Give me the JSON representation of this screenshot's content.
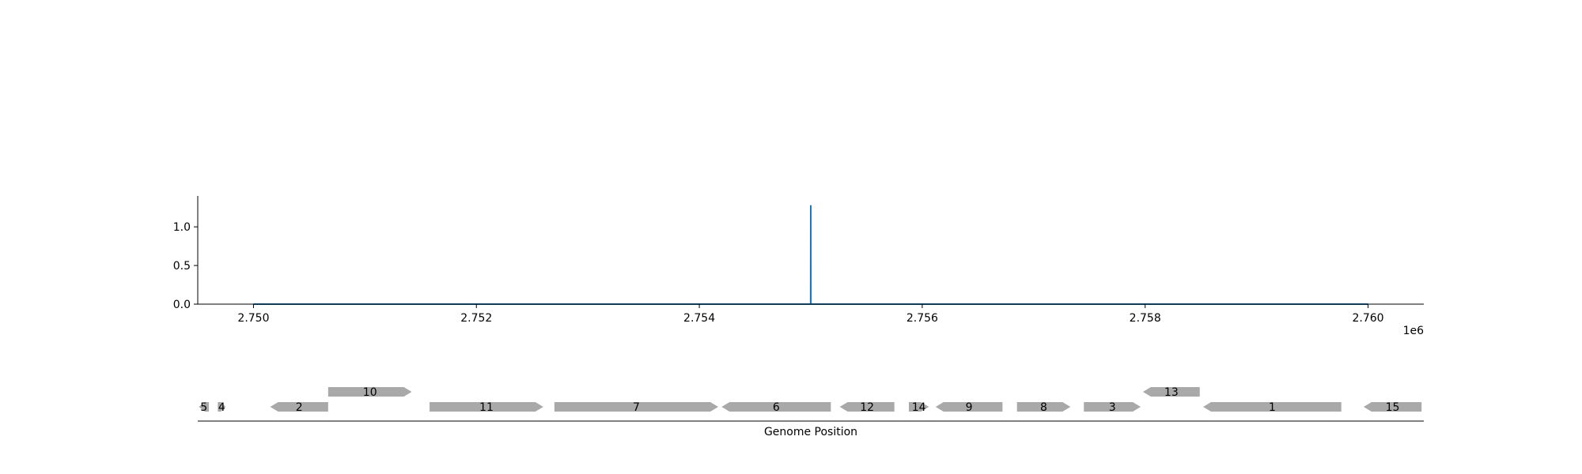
{
  "chart_data": [
    {
      "type": "line",
      "x_range": [
        2749500,
        2760500
      ],
      "y_range": [
        0,
        1.4
      ],
      "x_ticks": [
        2750000,
        2752000,
        2754000,
        2756000,
        2758000,
        2760000
      ],
      "x_tick_labels": [
        "2.750",
        "2.752",
        "2.754",
        "2.756",
        "2.758",
        "2.760"
      ],
      "x_offset_label": "1e6",
      "y_ticks": [
        0.0,
        0.5,
        1.0
      ],
      "y_tick_labels": [
        "0.0",
        "0.5",
        "1.0"
      ],
      "grid": false,
      "line_color": "#1f77b4",
      "series": [
        {
          "x": [
            2750000,
            2754999,
            2755000,
            2755001,
            2760000
          ],
          "y": [
            0,
            0,
            1.28,
            0,
            0
          ]
        }
      ]
    },
    {
      "type": "gene-track",
      "x_range": [
        2749500,
        2760500
      ],
      "xlabel": "Genome Position",
      "gene_color": "#a9a9a9",
      "genes": [
        {
          "label": "5",
          "start": 2749510,
          "end": 2749600,
          "strand": -1,
          "row": 0
        },
        {
          "label": "4",
          "start": 2749680,
          "end": 2749750,
          "strand": 1,
          "row": 0
        },
        {
          "label": "2",
          "start": 2750150,
          "end": 2750670,
          "strand": -1,
          "row": 0
        },
        {
          "label": "10",
          "start": 2750670,
          "end": 2751420,
          "strand": 1,
          "row": 1
        },
        {
          "label": "11",
          "start": 2751580,
          "end": 2752600,
          "strand": 1,
          "row": 0
        },
        {
          "label": "7",
          "start": 2752700,
          "end": 2754170,
          "strand": 1,
          "row": 0
        },
        {
          "label": "6",
          "start": 2754200,
          "end": 2755180,
          "strand": -1,
          "row": 0
        },
        {
          "label": "12",
          "start": 2755260,
          "end": 2755750,
          "strand": -1,
          "row": 0
        },
        {
          "label": "14",
          "start": 2755880,
          "end": 2756060,
          "strand": 1,
          "row": 0
        },
        {
          "label": "9",
          "start": 2756120,
          "end": 2756720,
          "strand": -1,
          "row": 0
        },
        {
          "label": "8",
          "start": 2756850,
          "end": 2757330,
          "strand": 1,
          "row": 0
        },
        {
          "label": "3",
          "start": 2757450,
          "end": 2757960,
          "strand": 1,
          "row": 0
        },
        {
          "label": "13",
          "start": 2757980,
          "end": 2758490,
          "strand": -1,
          "row": 1
        },
        {
          "label": "1",
          "start": 2758520,
          "end": 2759760,
          "strand": -1,
          "row": 0
        },
        {
          "label": "15",
          "start": 2759960,
          "end": 2760480,
          "strand": -1,
          "row": 0
        }
      ]
    }
  ]
}
